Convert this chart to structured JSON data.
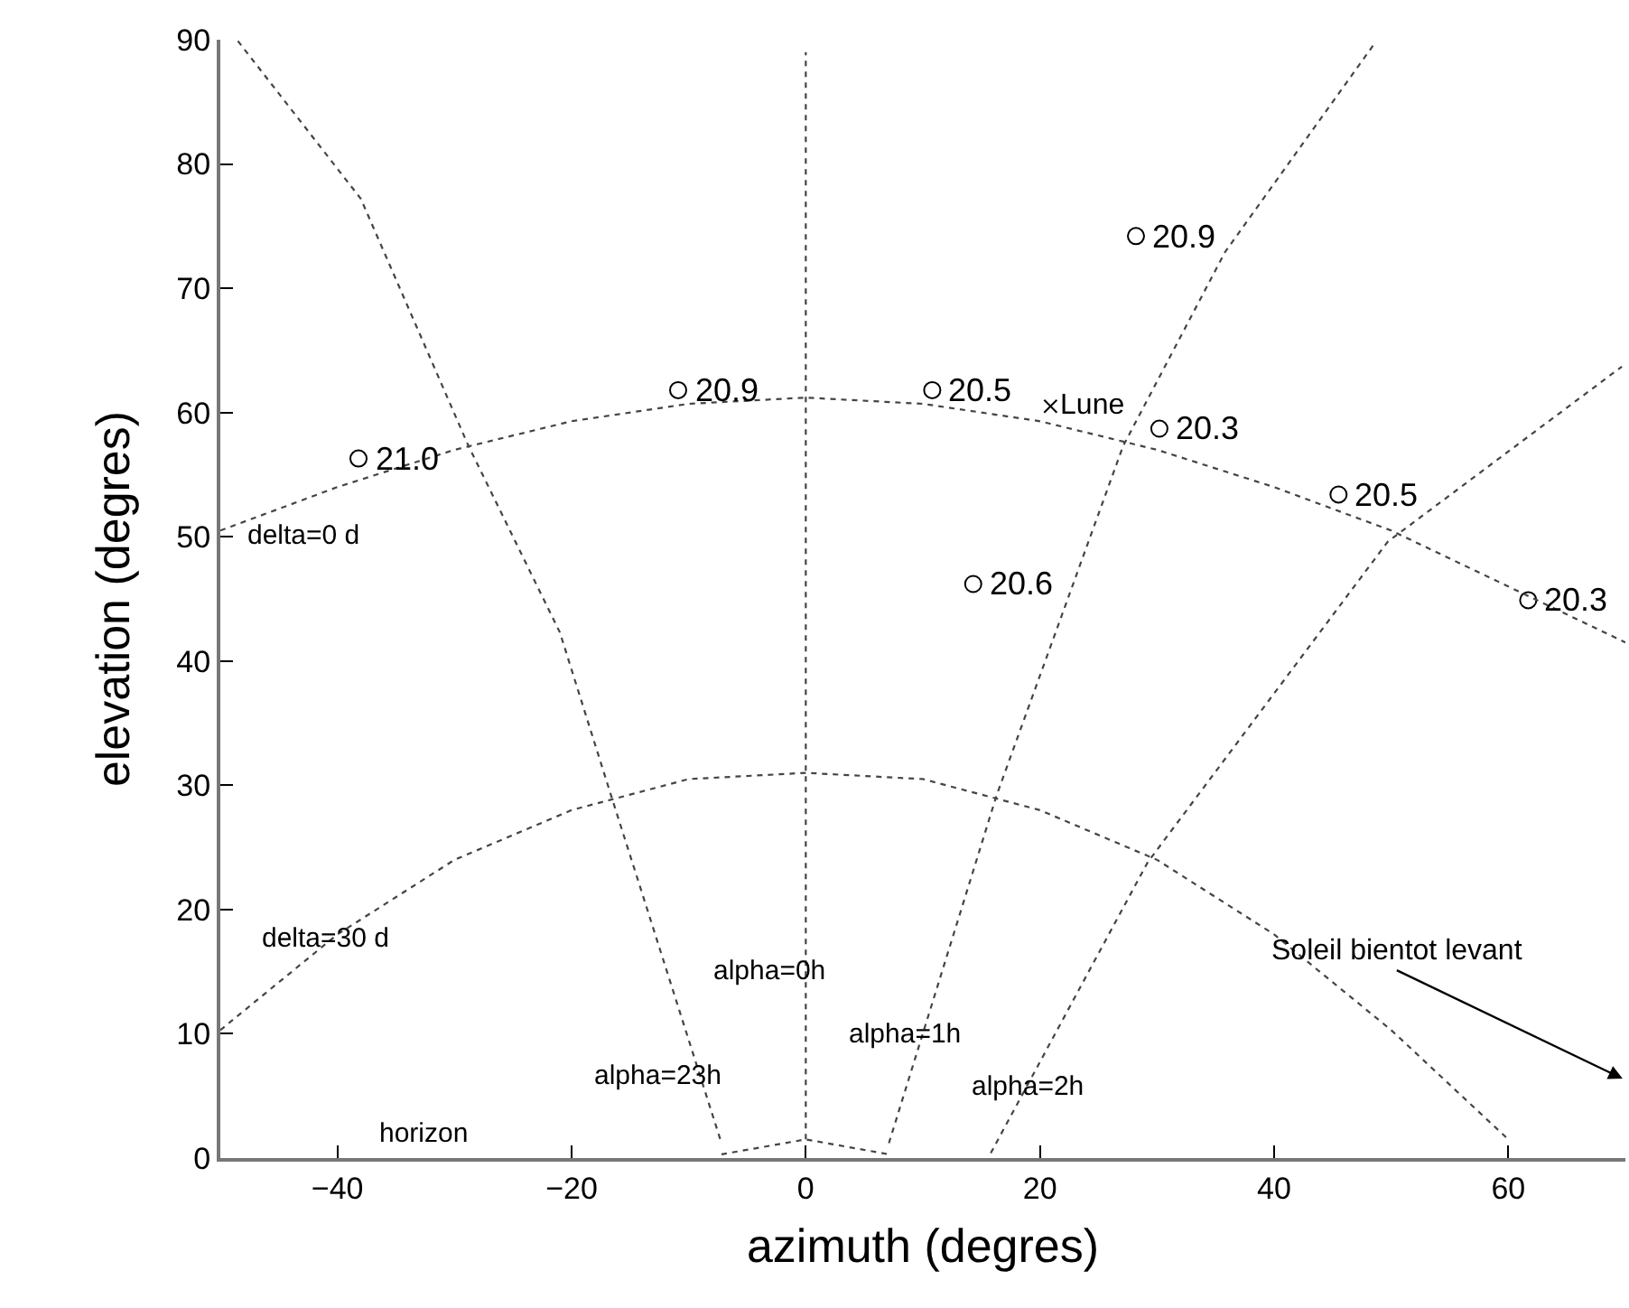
{
  "chart_data": {
    "type": "scatter",
    "xlabel": "azimuth (degres)",
    "ylabel": "elevation (degres)",
    "xlim": [
      -50,
      70
    ],
    "ylim": [
      0,
      90
    ],
    "xticks": [
      {
        "value": -40,
        "label": "−40"
      },
      {
        "value": -20,
        "label": "−20"
      },
      0,
      20,
      40,
      60
    ],
    "yticks": [
      0,
      10,
      20,
      30,
      40,
      50,
      60,
      70,
      80,
      90
    ],
    "series": [
      {
        "marker": "circle",
        "color": "#000000",
        "x": [
          -38.2,
          -10.9,
          10.8,
          30.2,
          28.2,
          45.5,
          14.3,
          61.7
        ],
        "values": [
          56.3,
          61.8,
          61.8,
          58.7,
          74.2,
          53.4,
          46.2,
          44.9
        ]
      },
      {
        "name": "Lune",
        "marker": "cross",
        "color": "#000000",
        "x": [
          20.9
        ],
        "values": [
          60.5
        ]
      },
      {
        "type": "line",
        "line_style": "dotted",
        "color": "#444444",
        "x": [
          -50,
          -40,
          -30,
          -20,
          -10,
          0,
          10,
          20,
          30,
          40,
          50,
          60,
          70
        ],
        "values": [
          50.5,
          54,
          57,
          59.3,
          60.7,
          61.2,
          60.7,
          59.3,
          57,
          54,
          50.5,
          46,
          41.5
        ]
      },
      {
        "type": "line",
        "line_style": "dotted",
        "color": "#444444",
        "x": [
          -50,
          -40,
          -30,
          -20,
          -10,
          0,
          10,
          20,
          30,
          40,
          50,
          60
        ],
        "values": [
          10.3,
          18,
          24,
          28,
          30.5,
          31,
          30.5,
          28,
          24,
          18,
          10.3,
          1.5
        ]
      },
      {
        "type": "line",
        "line_style": "dotted",
        "color": "#444444",
        "x": [
          -48.5,
          -38,
          -28.8,
          -21,
          -16.5,
          -7.2
        ],
        "values": [
          89.9,
          77.2,
          57.3,
          42.3,
          28.8,
          1.2
        ]
      },
      {
        "type": "line",
        "line_style": "dotted",
        "color": "#444444",
        "x": [
          7.1,
          16.3,
          27.1,
          35.8,
          48.5
        ],
        "values": [
          1.2,
          29.2,
          57.3,
          72.9,
          89.6
        ]
      },
      {
        "type": "line",
        "line_style": "dotted",
        "color": "#444444",
        "x": [
          15.8,
          29.2,
          49.7,
          69.7
        ],
        "values": [
          0.4,
          23.8,
          49.6,
          63.7
        ]
      },
      {
        "type": "line",
        "line_style": "dotted",
        "color": "#444444",
        "x": [
          -7.2,
          0,
          7.1
        ],
        "values": [
          0.3,
          1.5,
          0.3
        ]
      },
      {
        "type": "line",
        "line_style": "dotted",
        "color": "#444444",
        "x": [
          0,
          0,
          0
        ],
        "values": [
          1.5,
          45,
          89
        ]
      }
    ],
    "annotations": [
      {
        "text": "21.0",
        "x": -38.2,
        "y": 56.3
      },
      {
        "text": "20.9",
        "x": -10.9,
        "y": 61.8
      },
      {
        "text": "20.5",
        "x": 10.8,
        "y": 61.8
      },
      {
        "text": "20.3",
        "x": 30.2,
        "y": 58.7
      },
      {
        "text": "20.9",
        "x": 28.2,
        "y": 74.2
      },
      {
        "text": "20.5",
        "x": 45.5,
        "y": 53.4
      },
      {
        "text": "20.6",
        "x": 14.3,
        "y": 46.2
      },
      {
        "text": "20.3",
        "x": 61.7,
        "y": 44.9
      },
      "delta=0 d",
      "delta=30 d",
      "alpha=0h",
      "alpha=23h",
      "horizon",
      "alpha=1h",
      "alpha=2h",
      "Soleil bientot levant"
    ]
  }
}
